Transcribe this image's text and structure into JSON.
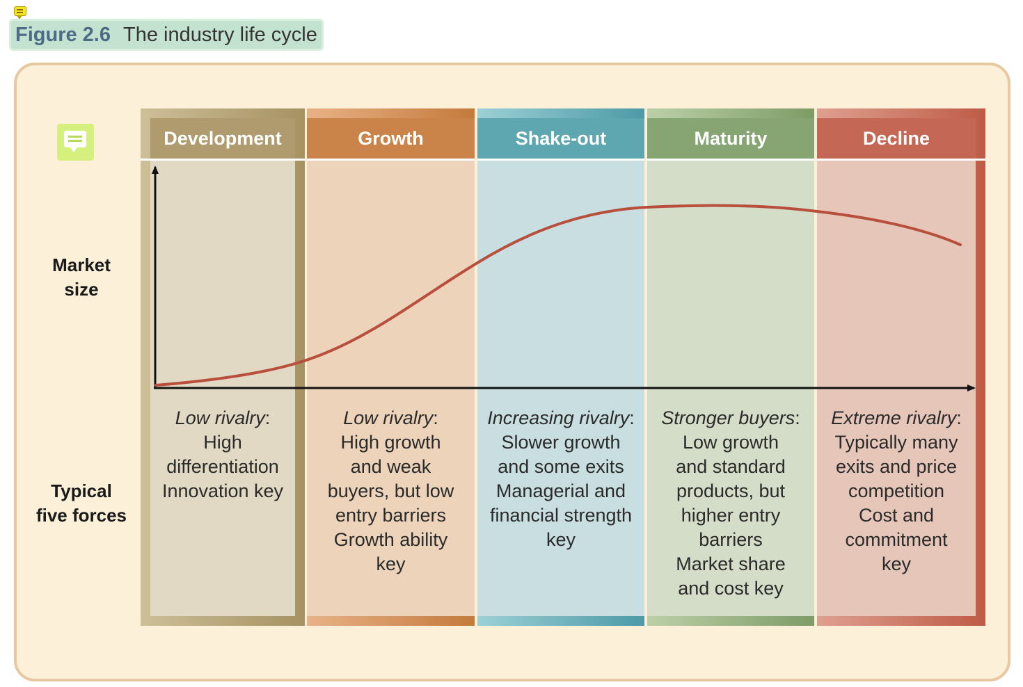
{
  "figure": {
    "number": "Figure 2.6",
    "title": "The industry life cycle"
  },
  "side_labels": {
    "market_size": [
      "Market",
      "size"
    ],
    "forces": [
      "Typical",
      "five forces"
    ]
  },
  "stages": [
    {
      "name": "Development",
      "rivalry": "Low rivalry",
      "lines": [
        "High",
        "differentiation",
        "Innovation key"
      ]
    },
    {
      "name": "Growth",
      "rivalry": "Low rivalry",
      "lines": [
        "High growth",
        "and weak",
        "buyers, but low",
        "entry barriers",
        "Growth ability",
        "key"
      ]
    },
    {
      "name": "Shake-out",
      "rivalry": "Increasing rivalry",
      "lines": [
        "Slower growth",
        "and some exits",
        "Managerial and",
        "financial strength",
        "key"
      ]
    },
    {
      "name": "Maturity",
      "rivalry": "Stronger buyers",
      "lines": [
        "Low growth",
        "and standard",
        "products, but",
        "higher entry",
        "barriers",
        "Market share",
        "and cost key"
      ]
    },
    {
      "name": "Decline",
      "rivalry": "Extreme rivalry",
      "lines": [
        "Typically many",
        "exits and price",
        "competition",
        "Cost and",
        "commitment",
        "key"
      ]
    }
  ],
  "colors": {
    "panel_bg": "#fcf0d9",
    "panel_border": "#e7c8a2",
    "curve": "#b84e3c",
    "axis": "#111111",
    "development": {
      "header": "#b09b6e",
      "body": "#e1d9c4",
      "frame": "#a69262"
    },
    "growth": {
      "header": "#ca844a",
      "body": "#ecd3b9",
      "frame": "#c47a3c"
    },
    "shakeout": {
      "header": "#5ea6b0",
      "body": "#c9dee0",
      "frame": "#4c9aa6"
    },
    "maturity": {
      "header": "#86a573",
      "body": "#d3ddc7",
      "frame": "#7d9c66"
    },
    "decline": {
      "header": "#c46855",
      "body": "#e6c6b9",
      "frame": "#be5b46"
    }
  }
}
